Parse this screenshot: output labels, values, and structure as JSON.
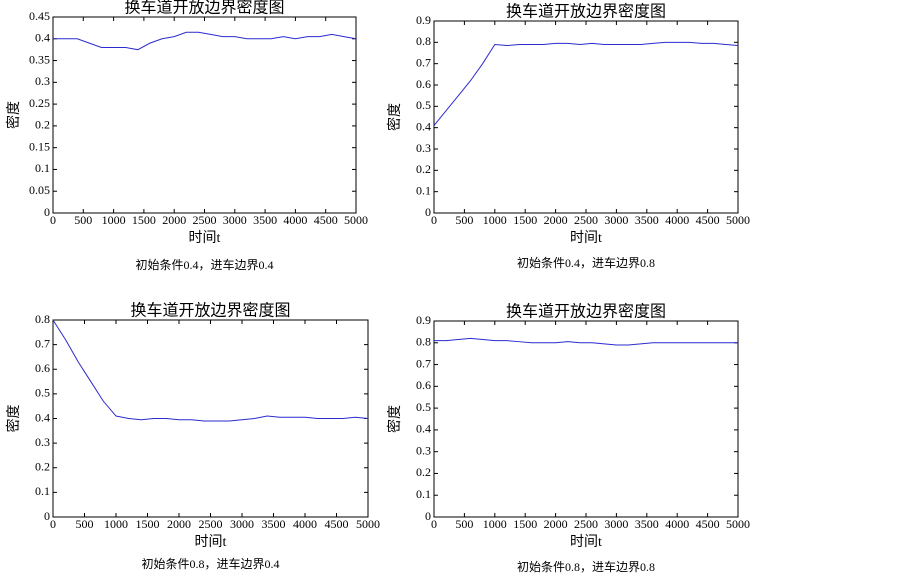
{
  "chart_data": [
    {
      "type": "line",
      "title": "换车道开放边界密度图",
      "xlabel": "时间t",
      "ylabel": "密度",
      "caption": "初始条件0.4，进车边界0.4",
      "x": [
        0,
        200,
        400,
        600,
        800,
        1000,
        1200,
        1400,
        1600,
        1800,
        2000,
        2200,
        2400,
        2600,
        2800,
        3000,
        3200,
        3400,
        3600,
        3800,
        4000,
        4200,
        4400,
        4600,
        4800,
        5000
      ],
      "values": [
        0.4,
        0.4,
        0.4,
        0.39,
        0.38,
        0.38,
        0.38,
        0.375,
        0.39,
        0.4,
        0.405,
        0.415,
        0.415,
        0.41,
        0.405,
        0.405,
        0.4,
        0.4,
        0.4,
        0.405,
        0.4,
        0.405,
        0.405,
        0.41,
        0.405,
        0.4
      ],
      "color": "#2b2bd0",
      "xlim": [
        0,
        5000
      ],
      "ylim": [
        0,
        0.45
      ],
      "xticks": [
        0,
        500,
        1000,
        1500,
        2000,
        2500,
        3000,
        3500,
        4000,
        4500,
        5000
      ],
      "yticks": [
        0,
        0.05,
        0.1,
        0.15,
        0.2,
        0.25,
        0.3,
        0.35,
        0.4,
        0.45
      ]
    },
    {
      "type": "line",
      "title": "换车道开放边界密度图",
      "xlabel": "时间t",
      "ylabel": "密度",
      "caption": "初始条件0.4，进车边界0.8",
      "x": [
        0,
        200,
        400,
        600,
        800,
        1000,
        1200,
        1400,
        1600,
        1800,
        2000,
        2200,
        2400,
        2600,
        2800,
        3000,
        3200,
        3400,
        3600,
        3800,
        4000,
        4200,
        4400,
        4600,
        4800,
        5000
      ],
      "values": [
        0.41,
        0.48,
        0.55,
        0.62,
        0.7,
        0.79,
        0.785,
        0.79,
        0.79,
        0.79,
        0.795,
        0.795,
        0.79,
        0.795,
        0.79,
        0.79,
        0.79,
        0.79,
        0.795,
        0.8,
        0.8,
        0.8,
        0.795,
        0.795,
        0.79,
        0.785
      ],
      "color": "#2b2bd0",
      "xlim": [
        0,
        5000
      ],
      "ylim": [
        0,
        0.9
      ],
      "xticks": [
        0,
        500,
        1000,
        1500,
        2000,
        2500,
        3000,
        3500,
        4000,
        4500,
        5000
      ],
      "yticks": [
        0,
        0.1,
        0.2,
        0.3,
        0.4,
        0.5,
        0.6,
        0.7,
        0.8,
        0.9
      ]
    },
    {
      "type": "line",
      "title": "换车道开放边界密度图",
      "xlabel": "时间t",
      "ylabel": "密度",
      "caption": "初始条件0.8，进车边界0.4",
      "x": [
        0,
        200,
        400,
        600,
        800,
        1000,
        1200,
        1400,
        1600,
        1800,
        2000,
        2200,
        2400,
        2600,
        2800,
        3000,
        3200,
        3400,
        3600,
        3800,
        4000,
        4200,
        4400,
        4600,
        4800,
        5000
      ],
      "values": [
        0.8,
        0.72,
        0.63,
        0.55,
        0.47,
        0.41,
        0.4,
        0.395,
        0.4,
        0.4,
        0.395,
        0.395,
        0.39,
        0.39,
        0.39,
        0.395,
        0.4,
        0.41,
        0.405,
        0.405,
        0.405,
        0.4,
        0.4,
        0.4,
        0.405,
        0.4
      ],
      "color": "#2b2bd0",
      "xlim": [
        0,
        5000
      ],
      "ylim": [
        0,
        0.8
      ],
      "xticks": [
        0,
        500,
        1000,
        1500,
        2000,
        2500,
        3000,
        3500,
        4000,
        4500,
        5000
      ],
      "yticks": [
        0,
        0.1,
        0.2,
        0.3,
        0.4,
        0.5,
        0.6,
        0.7,
        0.8
      ]
    },
    {
      "type": "line",
      "title": "换车道开放边界密度图",
      "xlabel": "时间t",
      "ylabel": "密度",
      "caption": "初始条件0.8，进车边界0.8",
      "x": [
        0,
        200,
        400,
        600,
        800,
        1000,
        1200,
        1400,
        1600,
        1800,
        2000,
        2200,
        2400,
        2600,
        2800,
        3000,
        3200,
        3400,
        3600,
        3800,
        4000,
        4200,
        4400,
        4600,
        4800,
        5000
      ],
      "values": [
        0.81,
        0.81,
        0.815,
        0.82,
        0.815,
        0.81,
        0.81,
        0.805,
        0.8,
        0.8,
        0.8,
        0.805,
        0.8,
        0.8,
        0.795,
        0.79,
        0.79,
        0.795,
        0.8,
        0.8,
        0.8,
        0.8,
        0.8,
        0.8,
        0.8,
        0.8
      ],
      "color": "#2b2bd0",
      "xlim": [
        0,
        5000
      ],
      "ylim": [
        0,
        0.9
      ],
      "xticks": [
        0,
        500,
        1000,
        1500,
        2000,
        2500,
        3000,
        3500,
        4000,
        4500,
        5000
      ],
      "yticks": [
        0,
        0.1,
        0.2,
        0.3,
        0.4,
        0.5,
        0.6,
        0.7,
        0.8,
        0.9
      ]
    }
  ]
}
